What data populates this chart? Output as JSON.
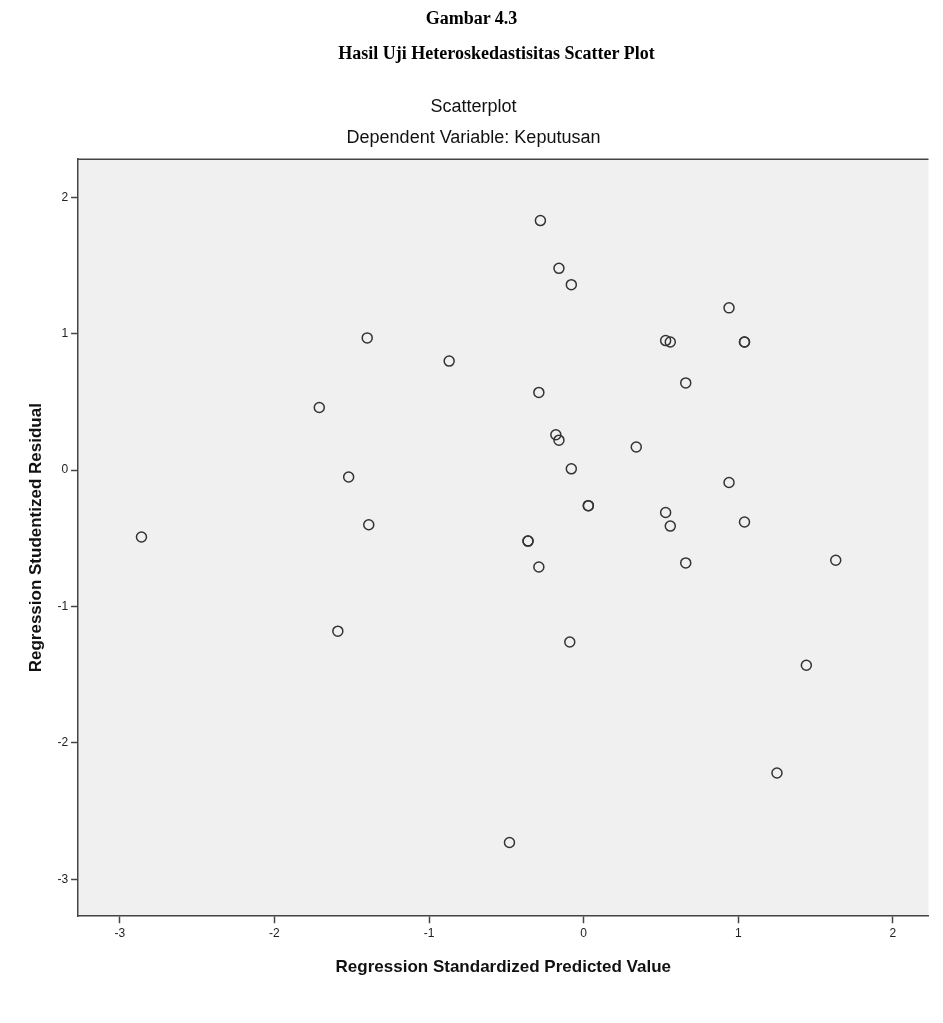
{
  "chart_data": {
    "type": "scatter",
    "title": "Scatterplot",
    "subtitle": "Dependent Variable: Keputusan",
    "xlabel": "Regression Standardized Predicted Value",
    "ylabel": "Regression Studentized Residual",
    "annotations": [
      "Gambar 4.3",
      "Hasil Uji Heteroskedastisitas Scatter Plot"
    ],
    "x": [
      -1.4,
      -0.87,
      -1.71,
      -1.52,
      -1.39,
      -2.86,
      -1.59,
      -0.28,
      -0.16,
      -0.08,
      0.94,
      0.53,
      0.56,
      1.04,
      1.04,
      0.66,
      -0.29,
      -0.18,
      -0.16,
      0.34,
      -0.08,
      0.94,
      0.03,
      0.03,
      0.53,
      0.56,
      1.04,
      -0.36,
      -0.36,
      -0.29,
      0.66,
      1.63,
      -0.09,
      1.44,
      1.25,
      -0.48
    ],
    "values": [
      0.97,
      0.8,
      0.46,
      -0.05,
      -0.4,
      -0.49,
      -1.18,
      1.83,
      1.48,
      1.36,
      1.19,
      0.95,
      0.94,
      0.94,
      0.94,
      0.64,
      0.57,
      0.26,
      0.22,
      0.17,
      0.01,
      -0.09,
      -0.26,
      -0.26,
      -0.31,
      -0.41,
      -0.38,
      -0.52,
      -0.52,
      -0.71,
      -0.68,
      -0.66,
      -1.26,
      -1.43,
      -2.22,
      -2.73
    ],
    "color": "#333333",
    "marker": "circle",
    "grid": false,
    "legend": false,
    "xlim": [
      -3.27,
      2.23
    ],
    "ylim": [
      -3.27,
      2.28
    ],
    "xticks": [
      -3,
      -2,
      -1,
      0,
      1,
      2
    ],
    "yticks": [
      -3,
      -2,
      -1,
      0,
      1,
      2
    ]
  }
}
